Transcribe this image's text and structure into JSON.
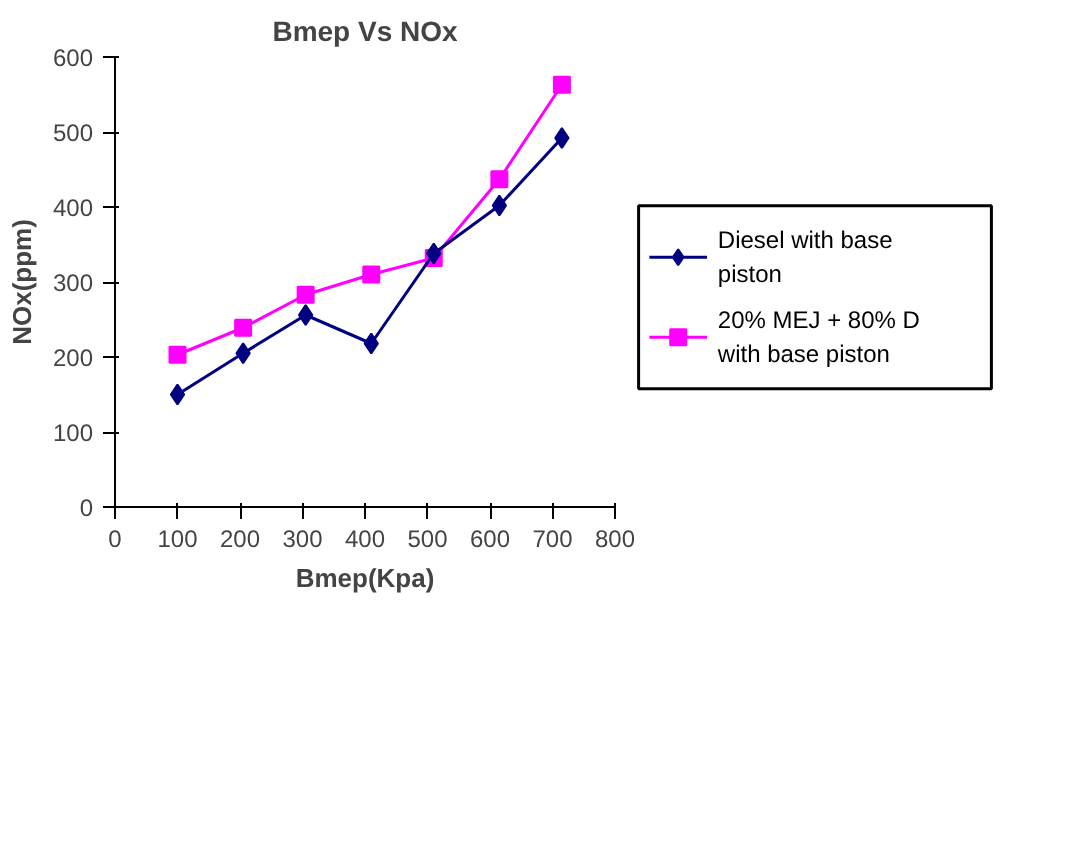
{
  "chart_data": {
    "type": "line",
    "title": "Bmep Vs NOx",
    "xlabel": "Bmep(Kpa)",
    "ylabel": "NOx(ppm)",
    "x": [
      100,
      205,
      305,
      410,
      510,
      615,
      715
    ],
    "series": [
      {
        "name": "Diesel with base piston",
        "color": "#000080",
        "marker": "diamond",
        "values": [
          150,
          205,
          256,
          218,
          338,
          402,
          492
        ]
      },
      {
        "name": "20% MEJ + 80% D with base piston",
        "color": "#ff00ff",
        "marker": "square",
        "values": [
          203,
          239,
          283,
          310,
          332,
          437,
          563
        ]
      }
    ],
    "xlim": [
      0,
      800
    ],
    "xticks": [
      0,
      100,
      200,
      300,
      400,
      500,
      600,
      700,
      800
    ],
    "ylim": [
      0,
      600
    ],
    "yticks": [
      0,
      100,
      200,
      300,
      400,
      500,
      600
    ],
    "grid": false,
    "legend": "right"
  }
}
